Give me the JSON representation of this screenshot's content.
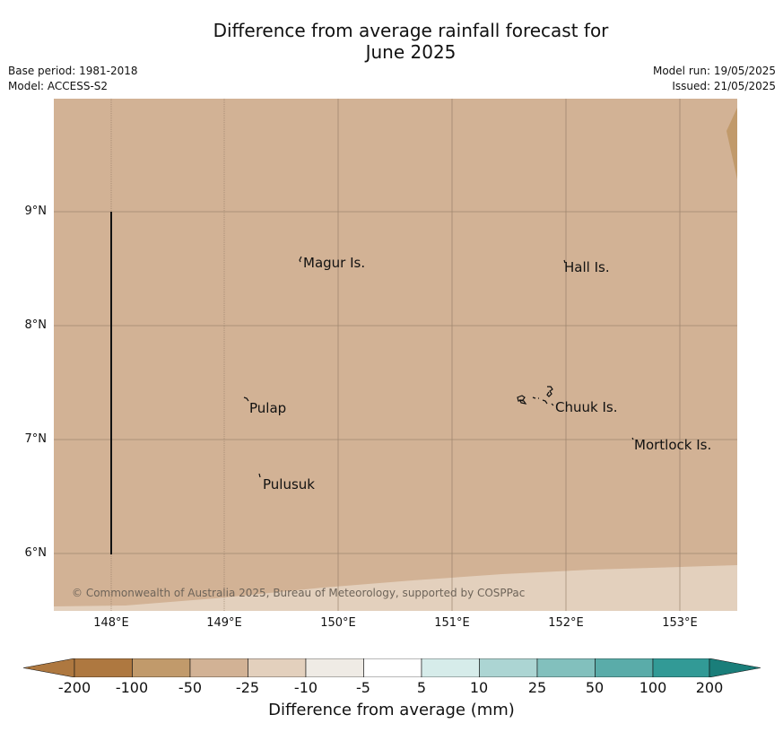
{
  "title_line1": "Difference from average rainfall forecast for",
  "title_line2": "June 2025",
  "base_period": "Base period: 1981-2018",
  "model": "Model: ACCESS-S2",
  "model_run": "Model run: 19/05/2025",
  "issued": "Issued: 21/05/2025",
  "map": {
    "lat_labels": [
      "9°N",
      "8°N",
      "7°N",
      "6°N"
    ],
    "lon_labels": [
      "148°E",
      "149°E",
      "150°E",
      "151°E",
      "152°E",
      "153°E"
    ],
    "places": [
      "Magur Is.",
      "Hall Is.",
      "Pulap",
      "Chuuk Is.",
      "Mortlock Is.",
      "Pulusuk"
    ],
    "copyright": "© Commonwealth of Australia 2025, Bureau of Meteorology, supported by COSPPac",
    "fill_colors": {
      "main": "#d2b295",
      "south": "#e3d0bd",
      "corner": "#c19a6b"
    }
  },
  "colorbar": {
    "ticks": [
      "-200",
      "-100",
      "-50",
      "-25",
      "-10",
      "-5",
      "5",
      "10",
      "25",
      "50",
      "100",
      "200"
    ],
    "colors": [
      "#ae7840",
      "#c19a6b",
      "#d2b295",
      "#e3d0bd",
      "#efebe5",
      "#ffffff",
      "#d6ecea",
      "#acd5d3",
      "#82c0bd",
      "#5aaca9",
      "#329a96",
      "#1a7e7a"
    ],
    "label": "Difference from average (mm)"
  }
}
